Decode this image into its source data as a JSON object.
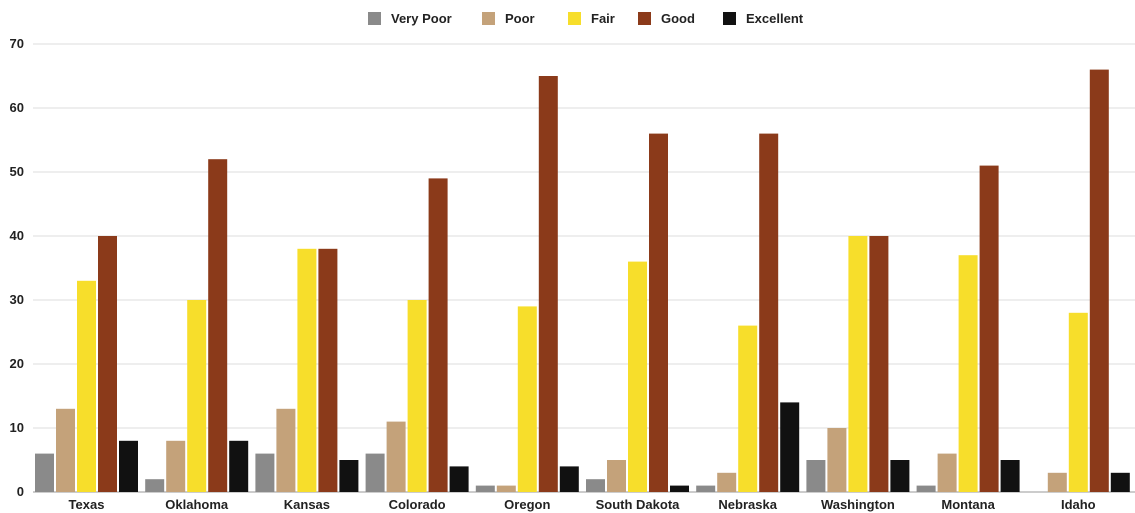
{
  "chart_data": {
    "type": "bar",
    "categories": [
      "Texas",
      "Oklahoma",
      "Kansas",
      "Colorado",
      "Oregon",
      "South Dakota",
      "Nebraska",
      "Washington",
      "Montana",
      "Idaho"
    ],
    "series": [
      {
        "name": "Very Poor",
        "color": "#8a8a8a",
        "values": [
          6,
          2,
          6,
          6,
          1,
          2,
          1,
          5,
          1,
          0
        ]
      },
      {
        "name": "Poor",
        "color": "#c4a27a",
        "values": [
          13,
          8,
          13,
          11,
          1,
          5,
          3,
          10,
          6,
          3
        ]
      },
      {
        "name": "Fair",
        "color": "#f7de2b",
        "values": [
          33,
          30,
          38,
          30,
          29,
          36,
          26,
          40,
          37,
          28
        ]
      },
      {
        "name": "Good",
        "color": "#8b3a1a",
        "values": [
          40,
          52,
          38,
          49,
          65,
          56,
          56,
          40,
          51,
          66
        ]
      },
      {
        "name": "Excellent",
        "color": "#111111",
        "values": [
          8,
          8,
          5,
          4,
          4,
          1,
          14,
          5,
          5,
          3
        ]
      }
    ],
    "ylim": [
      0,
      70
    ],
    "yticks": [
      0,
      10,
      20,
      30,
      40,
      50,
      60,
      70
    ],
    "grid": true,
    "legend_position": "top-center"
  }
}
